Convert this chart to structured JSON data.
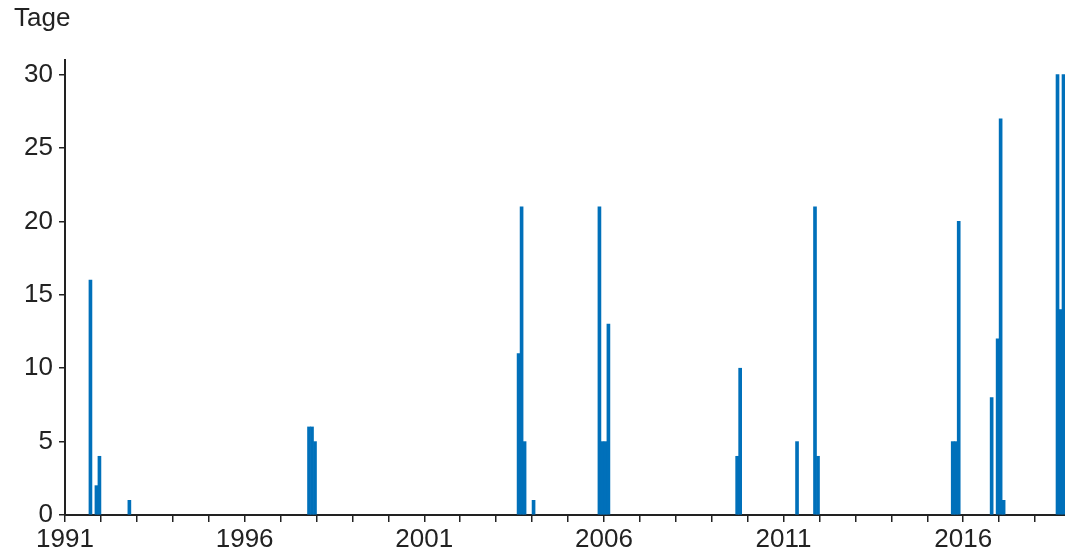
{
  "chart_data": {
    "type": "bar",
    "ylabel": "Tage",
    "x": [
      "1991-09",
      "1991-11",
      "1991-12",
      "1992-10",
      "1997-10",
      "1997-11",
      "1997-12",
      "2003-08",
      "2003-09",
      "2003-10",
      "2004-01",
      "2005-11",
      "2005-12",
      "2006-01",
      "2006-02",
      "2009-09",
      "2009-10",
      "2011-05",
      "2011-11",
      "2011-12",
      "2015-09",
      "2015-10",
      "2015-11",
      "2016-10",
      "2016-12",
      "2017-01",
      "2017-02",
      "2018-08",
      "2018-09",
      "2018-10"
    ],
    "values": [
      16,
      2,
      4,
      1,
      6,
      6,
      5,
      11,
      21,
      5,
      1,
      21,
      5,
      5,
      13,
      4,
      10,
      5,
      21,
      4,
      5,
      5,
      20,
      8,
      12,
      27,
      1,
      30,
      14,
      30
    ],
    "color": "#0070ba",
    "xlim": [
      "1991-01",
      "2018-11"
    ],
    "xticks": [
      {
        "value": "1991",
        "label": "1991"
      },
      {
        "value": "1992",
        "label": null
      },
      {
        "value": "1993",
        "label": null
      },
      {
        "value": "1994",
        "label": null
      },
      {
        "value": "1995",
        "label": null
      },
      {
        "value": "1996",
        "label": "1996"
      },
      {
        "value": "1997",
        "label": null
      },
      {
        "value": "1998",
        "label": null
      },
      {
        "value": "1999",
        "label": null
      },
      {
        "value": "2000",
        "label": null
      },
      {
        "value": "2001",
        "label": "2001"
      },
      {
        "value": "2002",
        "label": null
      },
      {
        "value": "2003",
        "label": null
      },
      {
        "value": "2004",
        "label": null
      },
      {
        "value": "2005",
        "label": null
      },
      {
        "value": "2006",
        "label": "2006"
      },
      {
        "value": "2007",
        "label": null
      },
      {
        "value": "2008",
        "label": null
      },
      {
        "value": "2009",
        "label": null
      },
      {
        "value": "2010",
        "label": null
      },
      {
        "value": "2011",
        "label": "2011"
      },
      {
        "value": "2012",
        "label": null
      },
      {
        "value": "2013",
        "label": null
      },
      {
        "value": "2014",
        "label": null
      },
      {
        "value": "2015",
        "label": null
      },
      {
        "value": "2016",
        "label": "2016"
      },
      {
        "value": "2017",
        "label": null
      },
      {
        "value": "2018",
        "label": null
      }
    ],
    "ylim": [
      0,
      31
    ],
    "yticks": [
      0,
      5,
      10,
      15,
      20,
      25,
      30
    ],
    "grid": false,
    "legend": false
  }
}
